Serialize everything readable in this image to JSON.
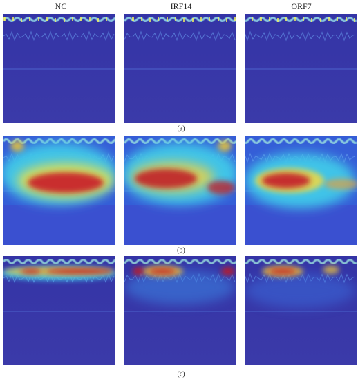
{
  "columns": [
    "NC",
    "IRF14",
    "ORF7"
  ],
  "row_labels": [
    "(a)",
    "(b)",
    "(c)"
  ]
}
